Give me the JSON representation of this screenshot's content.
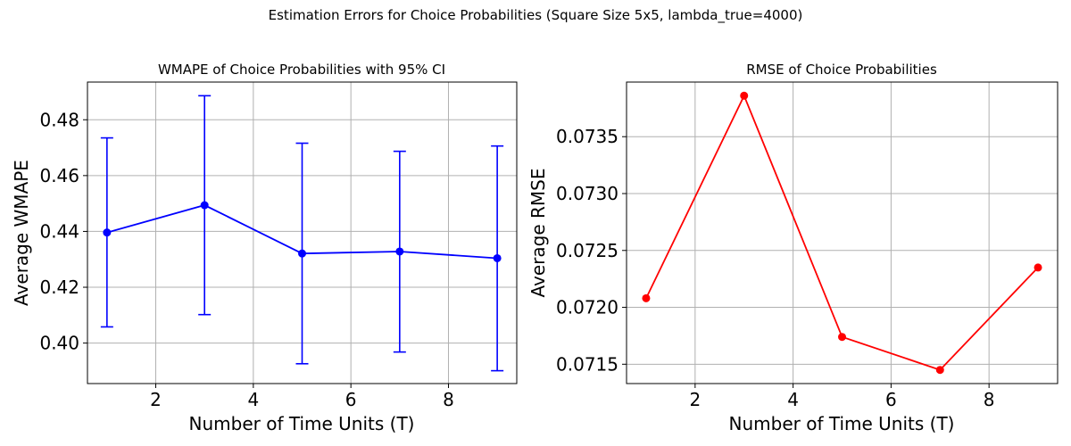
{
  "figure": {
    "suptitle": "Estimation Errors for Choice Probabilities (Square Size 5x5, lambda_true=4000)"
  },
  "chart_data": [
    {
      "type": "line",
      "title": "WMAPE of Choice Probabilities with 95% CI",
      "xlabel": "Number of Time Units (T)",
      "ylabel": "Average WMAPE",
      "xlim": [
        0.6,
        9.4
      ],
      "ylim": [
        0.3855,
        0.4935
      ],
      "xticks": [
        2,
        4,
        6,
        8
      ],
      "yticks": [
        0.4,
        0.42,
        0.44,
        0.46,
        0.48
      ],
      "ytick_labels": [
        "0.40",
        "0.42",
        "0.44",
        "0.46",
        "0.48"
      ],
      "grid": true,
      "color": "#0000ff",
      "marker": "circle",
      "x": [
        1,
        3,
        5,
        7,
        9
      ],
      "y": [
        0.4396,
        0.4494,
        0.4321,
        0.4328,
        0.4304
      ],
      "ci_lower": [
        0.4058,
        0.4102,
        0.3926,
        0.3968,
        0.3901
      ],
      "ci_upper": [
        0.4735,
        0.4886,
        0.4716,
        0.4687,
        0.4706
      ]
    },
    {
      "type": "line",
      "title": "RMSE of Choice Probabilities",
      "xlabel": "Number of Time Units (T)",
      "ylabel": "Average RMSE",
      "xlim": [
        0.6,
        9.4
      ],
      "ylim": [
        0.07133,
        0.07398
      ],
      "xticks": [
        2,
        4,
        6,
        8
      ],
      "yticks": [
        0.0715,
        0.072,
        0.0725,
        0.073,
        0.0735
      ],
      "ytick_labels": [
        "0.0715",
        "0.0720",
        "0.0725",
        "0.0730",
        "0.0735"
      ],
      "grid": true,
      "color": "#ff0000",
      "marker": "circle",
      "x": [
        1,
        3,
        5,
        7,
        9
      ],
      "y": [
        0.07208,
        0.07386,
        0.07174,
        0.07145,
        0.07235
      ]
    }
  ]
}
